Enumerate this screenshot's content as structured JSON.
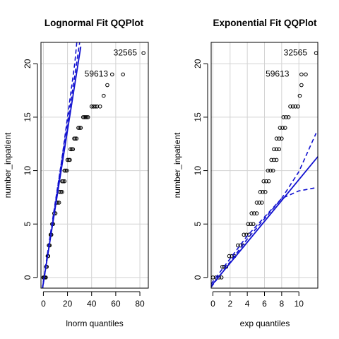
{
  "chart_data": [
    {
      "type": "scatter",
      "title": "Lognormal Fit QQPlot",
      "xlabel": "lnorm quantiles",
      "ylabel": "number_inpatient",
      "xlim": [
        -2,
        87
      ],
      "ylim": [
        -1,
        22
      ],
      "xticks": [
        0,
        20,
        40,
        60,
        80
      ],
      "yticks": [
        0,
        5,
        10,
        15,
        20
      ],
      "grid": true,
      "points": [
        {
          "x": 0,
          "y": 0
        },
        {
          "x": 0.7,
          "y": 0
        },
        {
          "x": 1.4,
          "y": 0
        },
        {
          "x": 2,
          "y": 0
        },
        {
          "x": 2.2,
          "y": 1
        },
        {
          "x": 2.8,
          "y": 1
        },
        {
          "x": 3.5,
          "y": 2
        },
        {
          "x": 4,
          "y": 2
        },
        {
          "x": 4.5,
          "y": 3
        },
        {
          "x": 5.2,
          "y": 3
        },
        {
          "x": 6,
          "y": 4
        },
        {
          "x": 6.6,
          "y": 4
        },
        {
          "x": 7.3,
          "y": 5
        },
        {
          "x": 8,
          "y": 5
        },
        {
          "x": 9,
          "y": 6
        },
        {
          "x": 10,
          "y": 6
        },
        {
          "x": 11,
          "y": 7
        },
        {
          "x": 12,
          "y": 7
        },
        {
          "x": 13,
          "y": 7
        },
        {
          "x": 13.5,
          "y": 8
        },
        {
          "x": 14.5,
          "y": 8
        },
        {
          "x": 15.5,
          "y": 8
        },
        {
          "x": 15.5,
          "y": 9
        },
        {
          "x": 16.5,
          "y": 9
        },
        {
          "x": 17.5,
          "y": 9
        },
        {
          "x": 17.5,
          "y": 10
        },
        {
          "x": 18.5,
          "y": 10
        },
        {
          "x": 19.5,
          "y": 10
        },
        {
          "x": 20,
          "y": 11
        },
        {
          "x": 21,
          "y": 11
        },
        {
          "x": 22,
          "y": 11
        },
        {
          "x": 22.5,
          "y": 12
        },
        {
          "x": 23.5,
          "y": 12
        },
        {
          "x": 24.5,
          "y": 12
        },
        {
          "x": 25.5,
          "y": 13
        },
        {
          "x": 26.5,
          "y": 13
        },
        {
          "x": 27.5,
          "y": 13
        },
        {
          "x": 29,
          "y": 14
        },
        {
          "x": 30,
          "y": 14
        },
        {
          "x": 31,
          "y": 14
        },
        {
          "x": 33,
          "y": 15
        },
        {
          "x": 34,
          "y": 15
        },
        {
          "x": 35,
          "y": 15
        },
        {
          "x": 36,
          "y": 15
        },
        {
          "x": 37,
          "y": 15
        },
        {
          "x": 40,
          "y": 16
        },
        {
          "x": 41.5,
          "y": 16
        },
        {
          "x": 43,
          "y": 16
        },
        {
          "x": 44.5,
          "y": 16
        },
        {
          "x": 47,
          "y": 16
        },
        {
          "x": 50,
          "y": 17
        },
        {
          "x": 53,
          "y": 18
        },
        {
          "x": 57,
          "y": 19
        },
        {
          "x": 66,
          "y": 19
        },
        {
          "x": 83,
          "y": 21
        }
      ],
      "fit_line": [
        [
          -1,
          -1.2
        ],
        [
          31,
          21.6
        ]
      ],
      "ci_lower": [
        [
          -1,
          -1.1
        ],
        [
          6,
          4.2
        ],
        [
          15,
          10.8
        ],
        [
          27,
          19.6
        ],
        [
          32,
          23.5
        ]
      ],
      "ci_upper": [
        [
          -1,
          -1.3
        ],
        [
          6,
          3.9
        ],
        [
          15,
          10.8
        ],
        [
          26,
          20
        ],
        [
          29,
          23.5
        ]
      ],
      "annotations": [
        {
          "text": "32565",
          "x": 80,
          "y": 21
        },
        {
          "text": "59613",
          "x": 56,
          "y": 19
        }
      ]
    },
    {
      "type": "scatter",
      "title": "Exponential Fit QQPlot",
      "xlabel": "exp quantiles",
      "ylabel": "number_inpatient",
      "xlim": [
        -0.2,
        12.2
      ],
      "ylim": [
        -1,
        22
      ],
      "xticks": [
        0,
        2,
        4,
        6,
        8,
        10
      ],
      "yticks": [
        0,
        5,
        10,
        15,
        20
      ],
      "grid": true,
      "points": [
        {
          "x": 0,
          "y": 0
        },
        {
          "x": 0.35,
          "y": 0
        },
        {
          "x": 0.7,
          "y": 0
        },
        {
          "x": 1,
          "y": 0
        },
        {
          "x": 1.1,
          "y": 1
        },
        {
          "x": 1.3,
          "y": 1
        },
        {
          "x": 1.55,
          "y": 1
        },
        {
          "x": 1.9,
          "y": 2
        },
        {
          "x": 2.2,
          "y": 2
        },
        {
          "x": 2.5,
          "y": 2
        },
        {
          "x": 2.9,
          "y": 3
        },
        {
          "x": 3.2,
          "y": 3
        },
        {
          "x": 3.5,
          "y": 3
        },
        {
          "x": 3.6,
          "y": 4
        },
        {
          "x": 3.9,
          "y": 4
        },
        {
          "x": 4.2,
          "y": 4
        },
        {
          "x": 4.1,
          "y": 5
        },
        {
          "x": 4.4,
          "y": 5
        },
        {
          "x": 4.7,
          "y": 5
        },
        {
          "x": 4.5,
          "y": 6
        },
        {
          "x": 4.8,
          "y": 6
        },
        {
          "x": 5.1,
          "y": 6
        },
        {
          "x": 5.1,
          "y": 7
        },
        {
          "x": 5.4,
          "y": 7
        },
        {
          "x": 5.7,
          "y": 7
        },
        {
          "x": 5.5,
          "y": 8
        },
        {
          "x": 5.8,
          "y": 8
        },
        {
          "x": 6.1,
          "y": 8
        },
        {
          "x": 5.9,
          "y": 9
        },
        {
          "x": 6.2,
          "y": 9
        },
        {
          "x": 6.5,
          "y": 9
        },
        {
          "x": 6.4,
          "y": 10
        },
        {
          "x": 6.7,
          "y": 10
        },
        {
          "x": 7,
          "y": 10
        },
        {
          "x": 6.8,
          "y": 11
        },
        {
          "x": 7.1,
          "y": 11
        },
        {
          "x": 7.4,
          "y": 11
        },
        {
          "x": 7.1,
          "y": 12
        },
        {
          "x": 7.4,
          "y": 12
        },
        {
          "x": 7.7,
          "y": 12
        },
        {
          "x": 7.4,
          "y": 13
        },
        {
          "x": 7.7,
          "y": 13
        },
        {
          "x": 8,
          "y": 13
        },
        {
          "x": 7.8,
          "y": 14
        },
        {
          "x": 8.1,
          "y": 14
        },
        {
          "x": 8.4,
          "y": 14
        },
        {
          "x": 8.2,
          "y": 15
        },
        {
          "x": 8.5,
          "y": 15
        },
        {
          "x": 8.8,
          "y": 15
        },
        {
          "x": 9,
          "y": 16
        },
        {
          "x": 9.3,
          "y": 16
        },
        {
          "x": 9.6,
          "y": 16
        },
        {
          "x": 9.9,
          "y": 16
        },
        {
          "x": 10.1,
          "y": 17
        },
        {
          "x": 10.3,
          "y": 18
        },
        {
          "x": 10.3,
          "y": 19
        },
        {
          "x": 10.8,
          "y": 19
        },
        {
          "x": 12,
          "y": 21
        }
      ],
      "fit_line": [
        [
          -0.2,
          -0.8
        ],
        [
          12.2,
          11.3
        ]
      ],
      "ci_lower": [
        [
          -0.2,
          -0.6
        ],
        [
          4,
          3.9
        ],
        [
          8,
          7.4
        ],
        [
          10,
          8.1
        ],
        [
          12,
          8.4
        ]
      ],
      "ci_upper": [
        [
          -0.2,
          -0.9
        ],
        [
          4,
          3.6
        ],
        [
          8,
          7.4
        ],
        [
          10,
          9.9
        ],
        [
          12,
          13.5
        ]
      ],
      "annotations": [
        {
          "text": "32565",
          "x": 11.3,
          "y": 21
        },
        {
          "text": "59613",
          "x": 9.2,
          "y": 19
        }
      ]
    }
  ],
  "colors": {
    "fit_line": "#1010d0",
    "ci_line": "#1010d0",
    "grid": "#d3d3d3",
    "points": "#000000"
  }
}
